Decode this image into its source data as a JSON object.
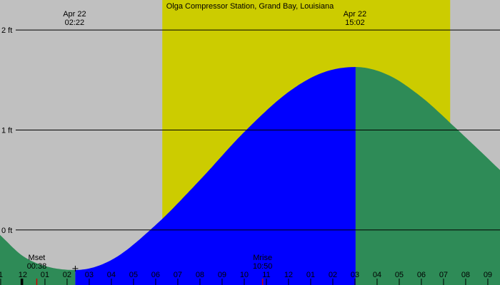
{
  "chart_data": {
    "type": "area",
    "title": "Olga Compressor Station, Grand Bay, Louisiana",
    "units": "ft",
    "x_range_hours": [
      -0.03,
      22.55
    ],
    "ylim": [
      -0.55,
      2.3
    ],
    "y_ticks": [
      {
        "value": 0,
        "label": "0 ft"
      },
      {
        "value": 1,
        "label": "1 ft"
      },
      {
        "value": 2,
        "label": "2 ft"
      }
    ],
    "hour_ticks": [
      {
        "hour": 0,
        "label": "1"
      },
      {
        "hour": 1,
        "label": "12"
      },
      {
        "hour": 2,
        "label": "01"
      },
      {
        "hour": 3,
        "label": "02"
      },
      {
        "hour": 4,
        "label": "03"
      },
      {
        "hour": 5,
        "label": "04"
      },
      {
        "hour": 6,
        "label": "05"
      },
      {
        "hour": 7,
        "label": "06"
      },
      {
        "hour": 8,
        "label": "07"
      },
      {
        "hour": 9,
        "label": "08"
      },
      {
        "hour": 10,
        "label": "09"
      },
      {
        "hour": 11,
        "label": "10"
      },
      {
        "hour": 12,
        "label": "11"
      },
      {
        "hour": 13,
        "label": "12"
      },
      {
        "hour": 14,
        "label": "01"
      },
      {
        "hour": 15,
        "label": "02"
      },
      {
        "hour": 16,
        "label": "03"
      },
      {
        "hour": 17,
        "label": "04"
      },
      {
        "hour": 18,
        "label": "05"
      },
      {
        "hour": 19,
        "label": "06"
      },
      {
        "hour": 20,
        "label": "07"
      },
      {
        "hour": 21,
        "label": "08"
      },
      {
        "hour": 22,
        "label": "09"
      }
    ],
    "extremes": [
      {
        "date": "Apr 22",
        "time": "02:22",
        "hour": 3.37,
        "height": -0.4,
        "kind": "low"
      },
      {
        "date": "Apr 22",
        "time": "15:02",
        "hour": 16.03,
        "height": 1.63,
        "kind": "high"
      }
    ],
    "daylight": {
      "start_hour": 7.3,
      "end_hour": 20.3
    },
    "moon_events": [
      {
        "label": "Mset",
        "time": "00:38",
        "hour": 1.63
      },
      {
        "label": "Mrise",
        "time": "10:50",
        "hour": 11.83
      }
    ],
    "now_hour": 0.95,
    "tide_series": [
      {
        "hour": -0.03,
        "height": -0.05
      },
      {
        "hour": 1,
        "height": -0.26
      },
      {
        "hour": 2,
        "height": -0.36
      },
      {
        "hour": 3.37,
        "height": -0.4
      },
      {
        "hour": 5,
        "height": -0.3
      },
      {
        "hour": 7,
        "height": 0.05
      },
      {
        "hour": 9,
        "height": 0.5
      },
      {
        "hour": 11,
        "height": 0.98
      },
      {
        "hour": 13,
        "height": 1.38
      },
      {
        "hour": 14.5,
        "height": 1.57
      },
      {
        "hour": 16.03,
        "height": 1.63
      },
      {
        "hour": 17.5,
        "height": 1.55
      },
      {
        "hour": 19,
        "height": 1.33
      },
      {
        "hour": 20.5,
        "height": 1.03
      },
      {
        "hour": 22.55,
        "height": 0.6
      }
    ],
    "colors": {
      "background": "#c0c0c0",
      "daylight": "#cccc00",
      "rising": "#0000ff",
      "other": "#2e8b57",
      "grid": "#000000",
      "moon_marker": "#cc0000"
    }
  }
}
